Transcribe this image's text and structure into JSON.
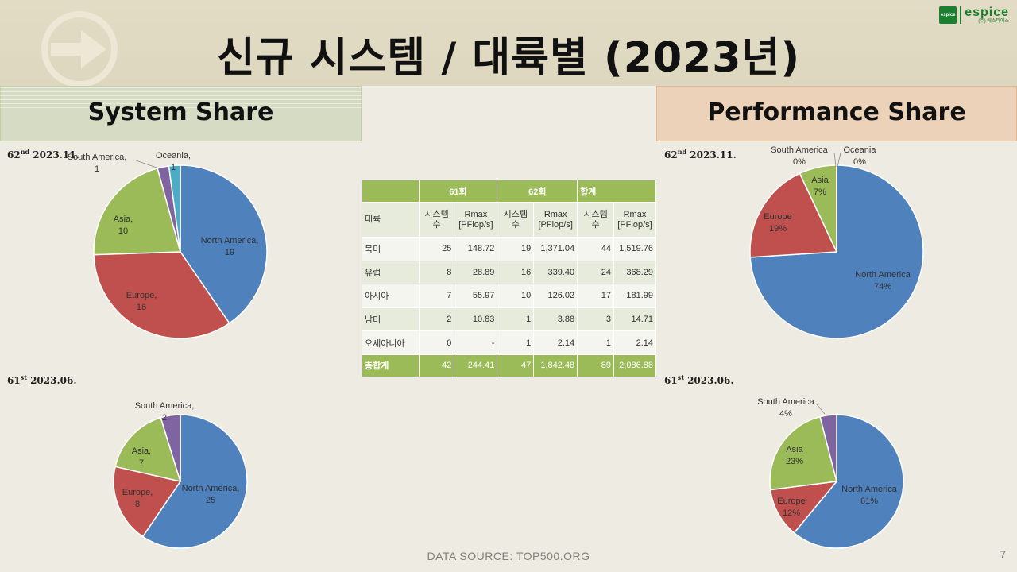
{
  "title": "신규 시스템 / 대륙별 (2023년)",
  "logo": {
    "name": "espice",
    "box_text": "espice",
    "sub": "(주) 에스피에스"
  },
  "left_header": "System Share",
  "right_header": "Performance Share",
  "periods": {
    "p62": {
      "num": "62",
      "sup": "nd",
      "date": " 2023.11."
    },
    "p61": {
      "num": "61",
      "sup": "st",
      "date": " 2023.06."
    }
  },
  "colors": {
    "north_america": "#4f81bd",
    "europe": "#c0504d",
    "asia": "#9bbb59",
    "south_america": "#8064a2",
    "oceania": "#4bacc6"
  },
  "chart_data": [
    {
      "type": "pie",
      "title": "",
      "period": "62nd 2023.11.",
      "labels": [
        "North America",
        "Europe",
        "Asia",
        "South America",
        "Oceania"
      ],
      "values": [
        19,
        16,
        10,
        1,
        1
      ],
      "data_labels": [
        "North America, 19",
        "Europe, 16",
        "Asia, 10",
        "South America, 1",
        "Oceania, 1"
      ]
    },
    {
      "type": "pie",
      "title": "",
      "period": "61st 2023.06.",
      "labels": [
        "North America",
        "Europe",
        "Asia",
        "South America"
      ],
      "values": [
        25,
        8,
        7,
        2
      ],
      "data_labels": [
        "North America, 25",
        "Europe, 8",
        "Asia, 7",
        "South America, 2"
      ]
    },
    {
      "type": "pie",
      "title": "",
      "period": "62nd 2023.11.",
      "labels": [
        "North America",
        "Europe",
        "Asia",
        "South America",
        "Oceania"
      ],
      "values": [
        74,
        19,
        7,
        0,
        0
      ],
      "data_labels": [
        "North America 74%",
        "Europe 19%",
        "Asia 7%",
        "South America 0%",
        "Oceania 0%"
      ]
    },
    {
      "type": "pie",
      "title": "",
      "period": "61st 2023.06.",
      "labels": [
        "North America",
        "Europe",
        "Asia",
        "South America"
      ],
      "values": [
        61,
        12,
        23,
        4
      ],
      "data_labels": [
        "North America 61%",
        "Europe 12%",
        "Asia 23%",
        "South America 4%"
      ]
    },
    {
      "type": "table",
      "header_groups": [
        "",
        "61회",
        "62회",
        "합계"
      ],
      "columns": [
        "대륙",
        "시스템 수",
        "Rmax [PFlop/s]",
        "시스템 수",
        "Rmax [PFlop/s]",
        "시스템 수",
        "Rmax [PFlop/s]"
      ],
      "rows": [
        [
          "북미",
          "25",
          "148.72",
          "19",
          "1,371.04",
          "44",
          "1,519.76"
        ],
        [
          "유럽",
          "8",
          "28.89",
          "16",
          "339.40",
          "24",
          "368.29"
        ],
        [
          "아시아",
          "7",
          "55.97",
          "10",
          "126.02",
          "17",
          "181.99"
        ],
        [
          "남미",
          "2",
          "10.83",
          "1",
          "3.88",
          "3",
          "14.71"
        ],
        [
          "오세아니아",
          "0",
          "-",
          "1",
          "2.14",
          "1",
          "2.14"
        ]
      ],
      "total": [
        "총합계",
        "42",
        "244.41",
        "47",
        "1,842.48",
        "89",
        "2,086.88"
      ]
    }
  ],
  "table_headers": {
    "group61": "61회",
    "group62": "62회",
    "groupSum": "합계",
    "continent": "대륙",
    "systems": "시스템\n수",
    "rmax": "Rmax\n[PFlop/s]"
  },
  "source": "DATA SOURCE: TOP500.ORG",
  "page_number": "7"
}
